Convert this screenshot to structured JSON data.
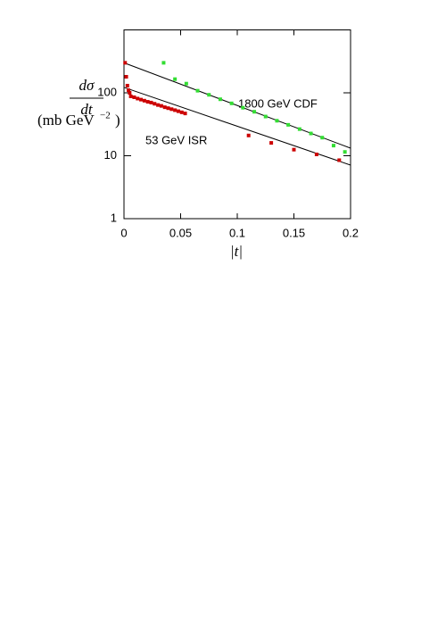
{
  "chart_data": {
    "type": "scatter",
    "ylabel_numerator": "dσ",
    "ylabel_denominator": "dt",
    "ylabel_units": "(mb GeV",
    "ylabel_units_exponent": "−2",
    "ylabel_units_close": ")",
    "xlabel": "|t|",
    "annotations": [
      "1800 GeV CDF",
      "53 GeV ISR"
    ],
    "xlim": [
      0,
      0.2
    ],
    "xticks": [
      0,
      0.05,
      0.1,
      0.15,
      0.2
    ],
    "ylim": [
      1,
      1000
    ],
    "yticks": [
      1,
      10,
      100
    ],
    "log_y": true,
    "series": [
      {
        "color": "#33dd33",
        "x": [
          0.035,
          0.045,
          0.055,
          0.065,
          0.075,
          0.085,
          0.095,
          0.105,
          0.115,
          0.125,
          0.135,
          0.145,
          0.155,
          0.165,
          0.175,
          0.185,
          0.195
        ],
        "values": [
          300,
          165,
          140,
          108,
          93,
          79,
          68,
          58,
          50,
          42,
          36,
          31,
          26.5,
          22.6,
          19.4,
          14.5,
          11.5
        ]
      },
      {
        "color": "#cc0000",
        "x": [
          0.001,
          0.002,
          0.003,
          0.004,
          0.005,
          0.006,
          0.009,
          0.012,
          0.015,
          0.018,
          0.021,
          0.024,
          0.027,
          0.03,
          0.033,
          0.036,
          0.039,
          0.042,
          0.045,
          0.048,
          0.051,
          0.054,
          0.11,
          0.13,
          0.15,
          0.17,
          0.19
        ],
        "values": [
          300,
          180,
          130,
          110,
          100,
          88,
          85,
          81,
          78,
          75,
          72,
          70,
          67,
          64,
          62,
          59,
          57,
          55,
          53,
          51,
          49,
          47,
          21,
          16,
          12.5,
          10.5,
          8.5
        ]
      }
    ],
    "fits": [
      {
        "color": "#000000",
        "x": [
          0,
          0.2
        ],
        "values": [
          300,
          13.2
        ]
      },
      {
        "color": "#000000",
        "x": [
          0,
          0.2
        ],
        "values": [
          122,
          7.1
        ]
      }
    ]
  }
}
